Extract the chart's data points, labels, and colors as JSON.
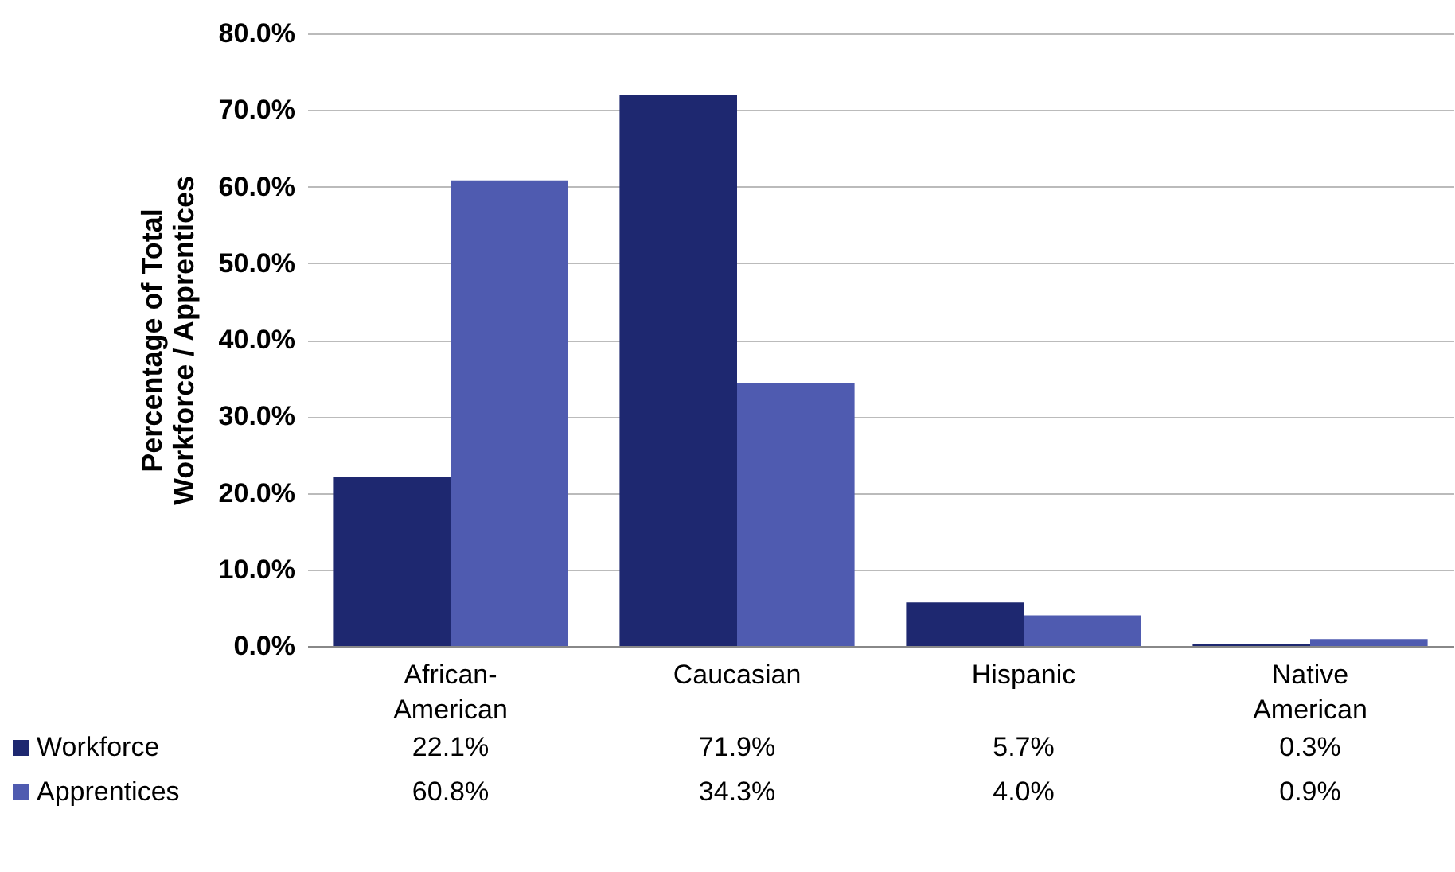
{
  "chart_data": {
    "type": "bar",
    "ylabel": "Percentage of Total Workforce / Apprentices",
    "categories": [
      "African-American",
      "Caucasian",
      "Hispanic",
      "Native American"
    ],
    "series": [
      {
        "name": "Workforce",
        "color": "#1e2870",
        "values": [
          22.1,
          71.9,
          5.7,
          0.3
        ],
        "value_labels": [
          "22.1%",
          "71.9%",
          "5.7%",
          "0.3%"
        ]
      },
      {
        "name": "Apprentices",
        "color": "#4f5bb0",
        "values": [
          60.8,
          34.3,
          4.0,
          0.9
        ],
        "value_labels": [
          "60.8%",
          "34.3%",
          "4.0%",
          "0.9%"
        ]
      }
    ],
    "ylim": [
      0,
      80
    ],
    "yticks": [
      {
        "value": 0,
        "label": "0.0%"
      },
      {
        "value": 10,
        "label": "10.0%"
      },
      {
        "value": 20,
        "label": "20.0%"
      },
      {
        "value": 30,
        "label": "30.0%"
      },
      {
        "value": 40,
        "label": "40.0%"
      },
      {
        "value": 50,
        "label": "50.0%"
      },
      {
        "value": 60,
        "label": "60.0%"
      },
      {
        "value": 70,
        "label": "70.0%"
      },
      {
        "value": 80,
        "label": "80.0%"
      }
    ],
    "grid": "y",
    "legend": "bottom left"
  }
}
